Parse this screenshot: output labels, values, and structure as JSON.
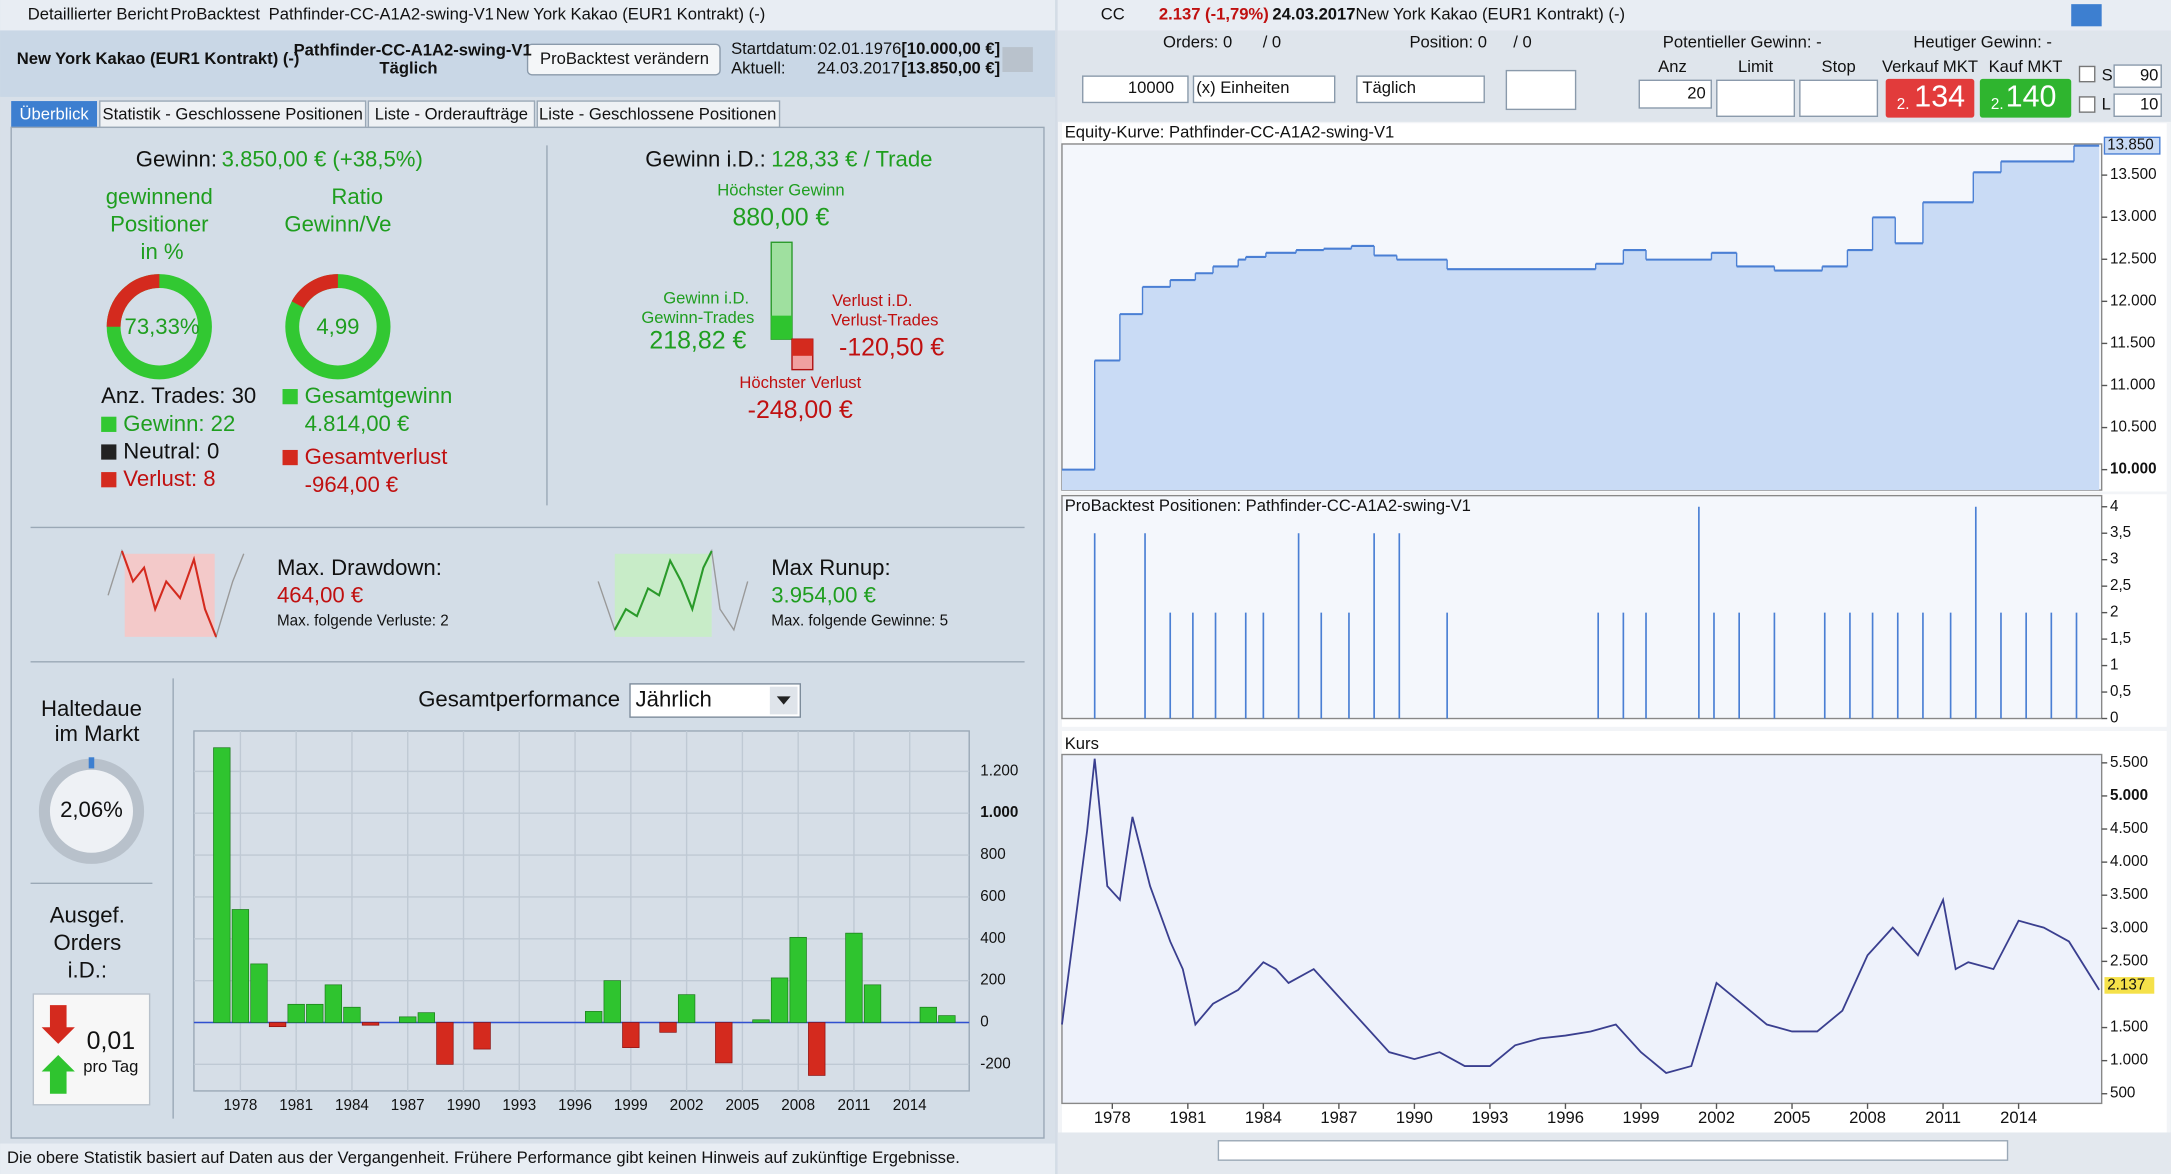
{
  "left": {
    "window_tabs": [
      "Detaillierter Bericht",
      "ProBacktest",
      "Pathfinder-CC-A1A2-swing-V1",
      "New York Kakao (EUR1 Kontrakt) (-)"
    ],
    "header": {
      "instrument": "New York Kakao (EUR1 Kontrakt) (-)",
      "system": "Pathfinder-CC-A1A2-swing-V1",
      "period": "Täglich",
      "button": "ProBacktest verändern",
      "start_label": "Startdatum:",
      "start_value": "02.01.1976",
      "start_capital": "[10.000,00 €]",
      "current_label": "Aktuell:",
      "current_value": "24.03.2017",
      "current_capital": "[13.850,00 €]"
    },
    "tabs": [
      "Überblick",
      "Statistik - Geschlossene Positionen",
      "Liste - Orderaufträge",
      "Liste - Geschlossene Positionen"
    ],
    "summary": {
      "gain_label": "Gewinn:",
      "gain_value": "3.850,00 € (+38,5%)",
      "win_pct_label": [
        "gewinnend",
        "Positioner",
        "in %"
      ],
      "ratio_label": [
        "Ratio",
        "Gewinn/Ve"
      ],
      "win_pct": "73,33%",
      "ratio": "4,99",
      "trades": "Anz. Trades: 30",
      "wins": "Gewinn: 22",
      "neutral": "Neutral: 0",
      "losses": "Verlust: 8",
      "total_gain_label": "Gesamtgewinn",
      "total_gain": "4.814,00 €",
      "total_loss_label": "Gesamtverlust",
      "total_loss": "-964,00 €"
    },
    "average": {
      "label": "Gewinn i.D.:",
      "value": "128,33 € / Trade",
      "highest_gain_label": "Höchster Gewinn",
      "highest_gain": "880,00 €",
      "avg_win_label": [
        "Gewinn i.D.",
        "Gewinn-Trades"
      ],
      "avg_win": "218,82 €",
      "avg_loss_label": [
        "Verlust i.D.",
        "Verlust-Trades"
      ],
      "avg_loss": "-120,50 €",
      "highest_loss_label": "Höchster Verlust",
      "highest_loss": "-248,00 €"
    },
    "drawdown": {
      "label": "Max. Drawdown:",
      "value": "464,00 €",
      "note": "Max. folgende Verluste: 2"
    },
    "runup": {
      "label": "Max Runup:",
      "value": "3.954,00 €",
      "note": "Max. folgende Gewinne: 5"
    },
    "holding": {
      "label": [
        "Haltedaue",
        "im Markt"
      ],
      "value": "2,06%"
    },
    "orders": {
      "label": [
        "Ausgef.",
        "Orders",
        "i.D.:"
      ],
      "value": "0,01",
      "unit": "pro Tag"
    },
    "performance_chart": {
      "type": "bar",
      "title": "Gesamtperformance",
      "dropdown": "Jährlich",
      "pos_color": "#2fc42f",
      "neg_color": "#d42a1e",
      "x": [
        1977,
        1978,
        1979,
        1980,
        1981,
        1982,
        1983,
        1984,
        1985,
        1986,
        1987,
        1988,
        1989,
        1990,
        1991,
        1992,
        1993,
        1994,
        1995,
        1996,
        1997,
        1998,
        1999,
        2000,
        2001,
        2002,
        2003,
        2004,
        2005,
        2006,
        2007,
        2008,
        2009,
        2010,
        2011,
        2012,
        2013,
        2014,
        2015,
        2016
      ],
      "values": [
        1313,
        540,
        280,
        -20,
        87,
        87,
        180,
        73,
        -13,
        0,
        27,
        47,
        -200,
        0,
        -127,
        0,
        0,
        0,
        0,
        0,
        53,
        200,
        -120,
        0,
        -47,
        133,
        0,
        -193,
        0,
        13,
        213,
        407,
        -253,
        0,
        427,
        180,
        0,
        0,
        73,
        33
      ],
      "xlim": [
        1975.5,
        2017.2
      ],
      "xticks": [
        1978,
        1981,
        1984,
        1987,
        1990,
        1993,
        1996,
        1999,
        2002,
        2005,
        2008,
        2011,
        2014
      ],
      "ylim": [
        -327,
        1393
      ],
      "yticks": [
        -200,
        0,
        200,
        400,
        600,
        800,
        {
          "value": 1000,
          "label": "1.000"
        },
        {
          "value": 1200,
          "label": "1.200"
        }
      ],
      "grid": true
    },
    "footer": "Die obere Statistik basiert auf Daten aus der Vergangenheit. Frühere Performance gibt keinen Hinweis auf zukünftige Ergebnisse."
  },
  "right": {
    "title": {
      "symbol": "CC",
      "change": "2.137 (-1,79%)",
      "date": "24.03.2017",
      "name": "New York Kakao (EUR1 Kontrakt) (-)"
    },
    "toolbar": {
      "orders": "Orders: 0",
      "orders_pending": "/ 0",
      "position": "Position: 0",
      "position_pending": "/ 0",
      "potential": "Potentieller Gewinn: -",
      "today": "Heutiger Gewinn: -",
      "quantity": "10000",
      "unit": "(x) Einheiten",
      "period": "Täglich",
      "anz_label": "Anz",
      "limit_label": "Limit",
      "stop_label": "Stop",
      "sell_label": "Verkauf MKT",
      "buy_label": "Kauf MKT",
      "anz_value": "20",
      "sell_prefix": "2.",
      "sell_price": "134",
      "buy_prefix": "2.",
      "buy_price": "140",
      "s_label": "S",
      "s_value": "90",
      "l_label": "L",
      "l_value": "10"
    },
    "time_axis": {
      "xlim": [
        1976,
        2017.3
      ],
      "xticks": [
        1978,
        1981,
        1984,
        1987,
        1990,
        1993,
        1996,
        1999,
        2002,
        2005,
        2008,
        2011,
        2014
      ]
    },
    "equity_chart": {
      "type": "step",
      "title": "Equity-Kurve: Pathfinder-CC-A1A2-swing-V1",
      "color": "#4a7fd4",
      "fill": "#c9dbf5",
      "x": [
        1976.0,
        1977.3,
        1978.3,
        1979.2,
        1980.3,
        1981.3,
        1982.0,
        1983.0,
        1983.3,
        1984.1,
        1985.3,
        1986.4,
        1987.5,
        1988.4,
        1989.3,
        1991.3,
        1997.2,
        1998.3,
        1999.2,
        2001.8,
        2002.8,
        2004.3,
        2006.2,
        2007.2,
        2008.2,
        2009.1,
        2010.2,
        2012.2,
        2013.3,
        2016.2,
        2017.2
      ],
      "values": [
        10000,
        11297,
        11848,
        12172,
        12253,
        12334,
        12415,
        12496,
        12528,
        12577,
        12609,
        12626,
        12658,
        12545,
        12496,
        12382,
        12447,
        12609,
        12496,
        12577,
        12415,
        12366,
        12415,
        12609,
        12998,
        12690,
        13177,
        13533,
        13663,
        13850,
        13850
      ],
      "ylim": [
        9757,
        13870
      ],
      "yticks": [
        {
          "value": 10000,
          "label": "10.000"
        },
        {
          "value": 10500,
          "label": "10.500"
        },
        {
          "value": 11000,
          "label": "11.000"
        },
        {
          "value": 11500,
          "label": "11.500"
        },
        {
          "value": 12000,
          "label": "12.000"
        },
        {
          "value": 12500,
          "label": "12.500"
        },
        {
          "value": 13000,
          "label": "13.000"
        },
        {
          "value": 13500,
          "label": "13.500"
        }
      ],
      "current": {
        "value": 13850,
        "label": "13.850"
      }
    },
    "positions_chart": {
      "type": "spike",
      "title": "ProBacktest Positionen: Pathfinder-CC-A1A2-swing-V1",
      "color": "#4a7fd4",
      "x": [
        1977.3,
        1979.3,
        1980.3,
        1981.2,
        1982.1,
        1983.3,
        1984.0,
        1985.4,
        1986.3,
        1987.4,
        1988.4,
        1989.4,
        1991.3,
        1997.3,
        1998.3,
        1999.2,
        2001.3,
        2001.9,
        2002.9,
        2004.3,
        2006.3,
        2007.3,
        2008.2,
        2009.2,
        2010.2,
        2011.3,
        2012.3,
        2013.3,
        2014.3,
        2015.3,
        2016.3
      ],
      "values": [
        3.5,
        3.5,
        2,
        2,
        2,
        2,
        2,
        3.5,
        2,
        2,
        3.5,
        3.5,
        2,
        2,
        2,
        2,
        4,
        2,
        2,
        2,
        2,
        2,
        2,
        2,
        2,
        2,
        4,
        2,
        2,
        2,
        2
      ],
      "ylim": [
        0,
        4.21
      ],
      "yticks": [
        0,
        {
          "value": 0.5,
          "label": "0,5"
        },
        1,
        {
          "value": 1.5,
          "label": "1,5"
        },
        2,
        {
          "value": 2.5,
          "label": "2,5"
        },
        3,
        {
          "value": 3.5,
          "label": "3,5"
        },
        4
      ]
    },
    "price_chart": {
      "type": "line",
      "title": "Kurs",
      "color": "#3a3f8f",
      "x": [
        1976.0,
        1977.0,
        1977.3,
        1977.8,
        1978.3,
        1978.8,
        1979.5,
        1980.3,
        1980.8,
        1981.3,
        1982,
        1983,
        1984,
        1984.5,
        1985,
        1986,
        1987,
        1988,
        1989,
        1990,
        1991,
        1992,
        1993,
        1994,
        1995,
        1996,
        1997,
        1998,
        1999,
        2000,
        2001,
        2002,
        2003,
        2004,
        2005,
        2006,
        2007,
        2008,
        2009,
        2010,
        2011,
        2011.5,
        2012,
        2013,
        2014,
        2015,
        2016,
        2017.2
      ],
      "values": [
        1546,
        4475,
        5563,
        3638,
        3429,
        4684,
        3638,
        2801,
        2383,
        1546,
        1860,
        2069,
        2487,
        2383,
        2174,
        2383,
        1964,
        1546,
        1128,
        1023,
        1128,
        918,
        918,
        1232,
        1337,
        1379,
        1441,
        1546,
        1128,
        814,
        918,
        2174,
        1860,
        1546,
        1441,
        1441,
        1755,
        2592,
        3010,
        2592,
        3429,
        2383,
        2487,
        2383,
        3115,
        3010,
        2801,
        2069
      ],
      "ylim": [
        354,
        5626
      ],
      "yticks": [
        {
          "value": 5500,
          "label": "5.500"
        },
        {
          "value": 5000,
          "label": "5.000"
        },
        {
          "value": 4500,
          "label": "4.500"
        },
        {
          "value": 4000,
          "label": "4.000"
        },
        {
          "value": 3500,
          "label": "3.500"
        },
        {
          "value": 3000,
          "label": "3.000"
        },
        {
          "value": 2500,
          "label": "2.500"
        },
        {
          "value": 1500,
          "label": "1.500"
        },
        {
          "value": 1000,
          "label": "1.000"
        },
        500
      ],
      "current": {
        "value": 2137,
        "label": "2.137"
      }
    }
  }
}
